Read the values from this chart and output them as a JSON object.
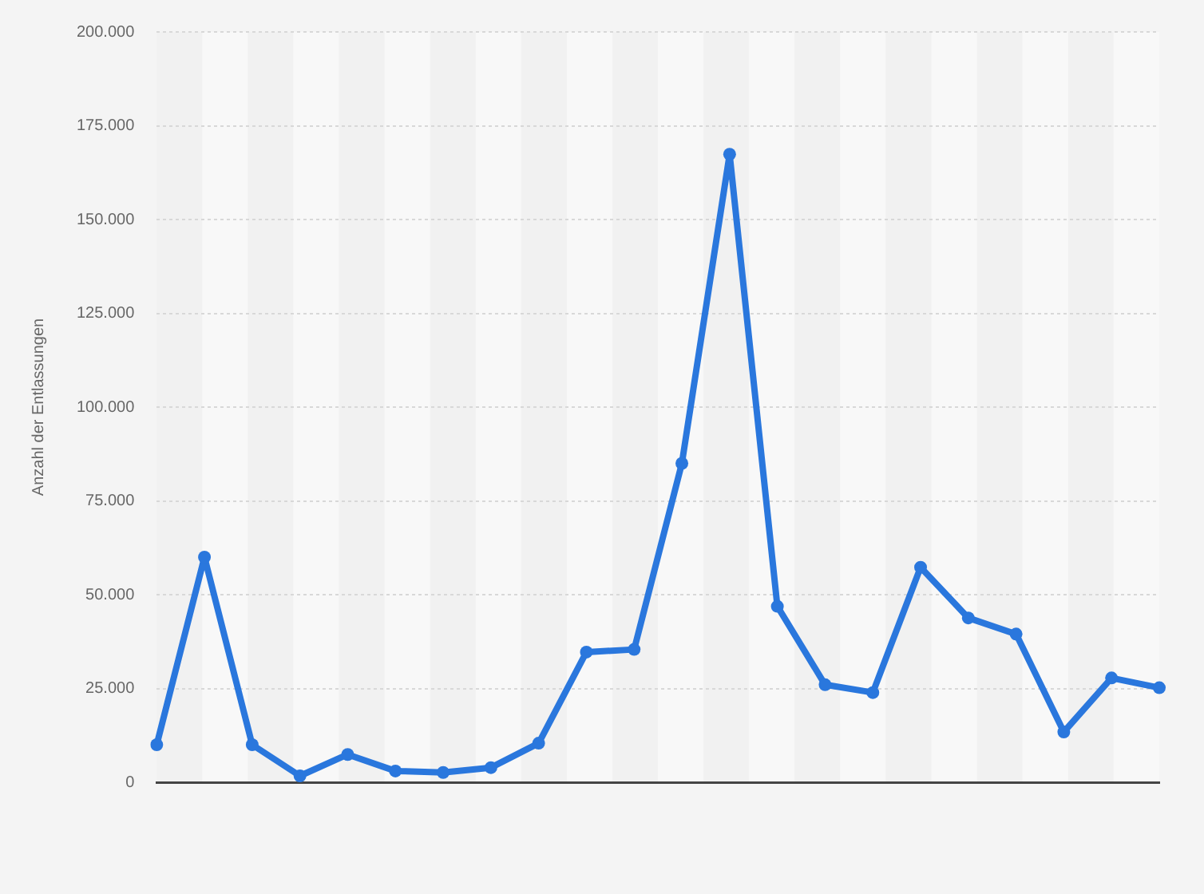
{
  "chart_data": {
    "type": "line",
    "ylabel": "Anzahl der Entlassungen",
    "categories": [
      null,
      null,
      null,
      null,
      null,
      null,
      null,
      null,
      null,
      null,
      null,
      null,
      null,
      null,
      null,
      null,
      null,
      null,
      null,
      null,
      null,
      null
    ],
    "series": [
      {
        "color": "#2a77dd",
        "values": [
          10000,
          60000,
          10000,
          1700,
          7400,
          3000,
          2600,
          3900,
          10400,
          34700,
          35400,
          85000,
          167400,
          46900,
          26000,
          23900,
          57300,
          43800,
          39500,
          13400,
          27800,
          25200
        ]
      }
    ],
    "ylim": [
      0,
      200000
    ],
    "yticks": [
      {
        "value": 0,
        "label": "0"
      },
      {
        "value": 25000,
        "label": "25.000"
      },
      {
        "value": 50000,
        "label": "50.000"
      },
      {
        "value": 75000,
        "label": "75.000"
      },
      {
        "value": 100000,
        "label": "100.000"
      },
      {
        "value": 125000,
        "label": "125.000"
      },
      {
        "value": 150000,
        "label": "150.000"
      },
      {
        "value": 175000,
        "label": "175.000"
      },
      {
        "value": 200000,
        "label": "200.000"
      }
    ],
    "grid": "y",
    "marker": "circle",
    "line_style": "solid",
    "legend": false,
    "tick_labels": "y"
  }
}
